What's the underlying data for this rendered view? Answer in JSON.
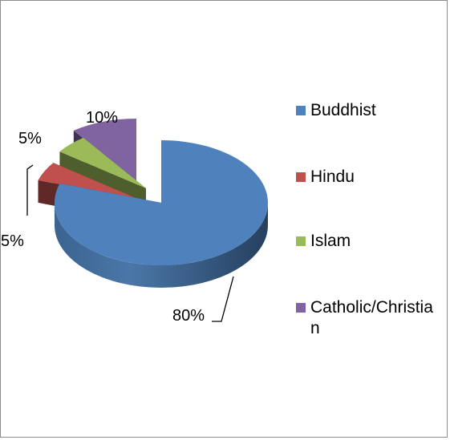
{
  "chart_data": {
    "type": "pie",
    "title": "",
    "categories": [
      "Buddhist",
      "Hindu",
      "Islam",
      "Catholic/Christian"
    ],
    "values": [
      80,
      5,
      5,
      10
    ],
    "labels": [
      "80%",
      "5%",
      "5%",
      "10%"
    ],
    "colors": [
      "#4f81bd",
      "#c0504d",
      "#9bbb59",
      "#8064a2"
    ],
    "legend_position": "right",
    "exploded": true,
    "three_d": true
  },
  "legend": {
    "items": [
      {
        "label": "Buddhist",
        "color": "#4f81bd"
      },
      {
        "label": "Hindu",
        "color": "#c0504d"
      },
      {
        "label": "Islam",
        "color": "#9bbb59"
      },
      {
        "label": "Catholic/Christian",
        "color": "#8064a2"
      }
    ]
  }
}
